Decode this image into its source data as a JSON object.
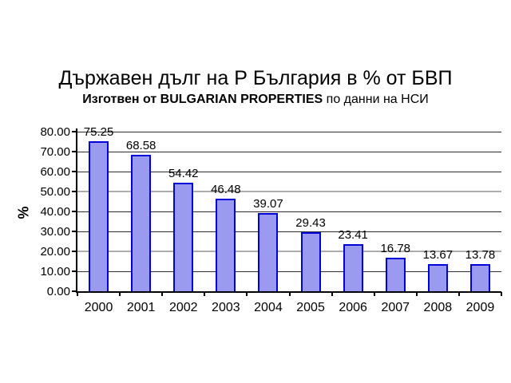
{
  "chart_data": {
    "type": "bar",
    "title": "Държавен дълг на Р България в % от БВП",
    "subtitle": {
      "bold": "Изготвен от BULGARIAN PROPERTIES",
      "regular": " по данни на НСИ"
    },
    "categories": [
      "2000",
      "2001",
      "2002",
      "2003",
      "2004",
      "2005",
      "2006",
      "2007",
      "2008",
      "2009"
    ],
    "values": [
      75.25,
      68.58,
      54.42,
      46.48,
      39.07,
      29.43,
      23.41,
      16.78,
      13.67,
      13.78
    ],
    "data_labels": [
      "75.25",
      "68.58",
      "54.42",
      "46.48",
      "39.07",
      "29.43",
      "23.41",
      "16.78",
      "13.67",
      "13.78"
    ],
    "xlabel": "",
    "ylabel": "%",
    "ylim": [
      0,
      80
    ],
    "y_ticks": [
      "80.00",
      "70.00",
      "60.00",
      "50.00",
      "40.00",
      "30.00",
      "20.00",
      "10.00",
      "0.00"
    ],
    "grid": true,
    "gray_grid_values": [
      50,
      20
    ],
    "legend": false,
    "colors": {
      "bar_fill": "#9a9af0",
      "bar_border": "#0000d8",
      "grid_dark": "#2e2e2e",
      "grid_gray": "#adadad",
      "text": "#000000",
      "background": "#ffffff"
    }
  }
}
